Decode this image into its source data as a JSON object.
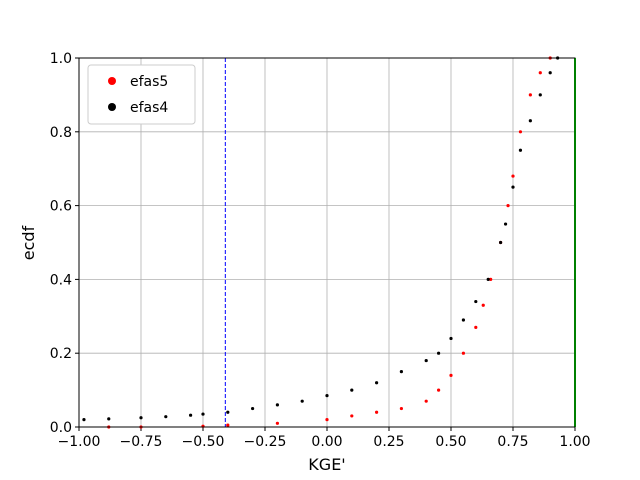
{
  "chart_data": {
    "type": "scatter",
    "xlabel": "KGE'",
    "ylabel": "ecdf",
    "xlim": [
      -1,
      1
    ],
    "ylim": [
      0,
      1
    ],
    "xticks": [
      {
        "value": -1,
        "label": "−1.00"
      },
      {
        "value": -0.75,
        "label": "−0.75"
      },
      {
        "value": -0.5,
        "label": "−0.50"
      },
      {
        "value": -0.25,
        "label": "−0.25"
      },
      {
        "value": 0,
        "label": "0.00"
      },
      0.25,
      {
        "value": 0.5,
        "label": "0.50"
      },
      0.75,
      {
        "value": 1,
        "label": "1.00"
      }
    ],
    "yticks": [
      {
        "value": 0,
        "label": "0.0"
      },
      0.2,
      0.4,
      0.6,
      0.8,
      {
        "value": 1,
        "label": "1.0"
      }
    ],
    "grid": true,
    "legend": "upper left",
    "vlines": [
      {
        "x": -0.41,
        "color": "#0000ff",
        "style": "dashed"
      },
      {
        "x": 1,
        "color": "#00ff00",
        "style": "solid"
      }
    ],
    "series": [
      {
        "name": "efas5",
        "color": "#ff0000",
        "x": [
          -0.88,
          -0.75,
          -0.5,
          -0.4,
          -0.2,
          0,
          0.1,
          0.2,
          0.3,
          0.4,
          0.45,
          0.5,
          0.55,
          0.6,
          0.63,
          0.66,
          0.7,
          0.73,
          0.75,
          0.78,
          0.82,
          0.86,
          0.9
        ],
        "values": [
          0,
          0,
          0.002,
          0.005,
          0.01,
          0.02,
          0.03,
          0.04,
          0.05,
          0.07,
          0.1,
          0.14,
          0.2,
          0.27,
          0.33,
          0.4,
          0.5,
          0.6,
          0.68,
          0.8,
          0.9,
          0.96,
          1
        ]
      },
      {
        "name": "efas4",
        "color": "#000000",
        "x": [
          -0.98,
          -0.88,
          -0.75,
          -0.65,
          -0.55,
          -0.5,
          -0.4,
          -0.3,
          -0.2,
          -0.1,
          0,
          0.1,
          0.2,
          0.3,
          0.4,
          0.45,
          0.5,
          0.55,
          0.6,
          0.65,
          0.7,
          0.72,
          0.75,
          0.78,
          0.82,
          0.86,
          0.9,
          0.93
        ],
        "values": [
          0.02,
          0.022,
          0.025,
          0.028,
          0.032,
          0.035,
          0.04,
          0.05,
          0.06,
          0.07,
          0.085,
          0.1,
          0.12,
          0.15,
          0.18,
          0.2,
          0.24,
          0.29,
          0.34,
          0.4,
          0.5,
          0.55,
          0.65,
          0.75,
          0.83,
          0.9,
          0.96,
          1
        ]
      }
    ]
  }
}
